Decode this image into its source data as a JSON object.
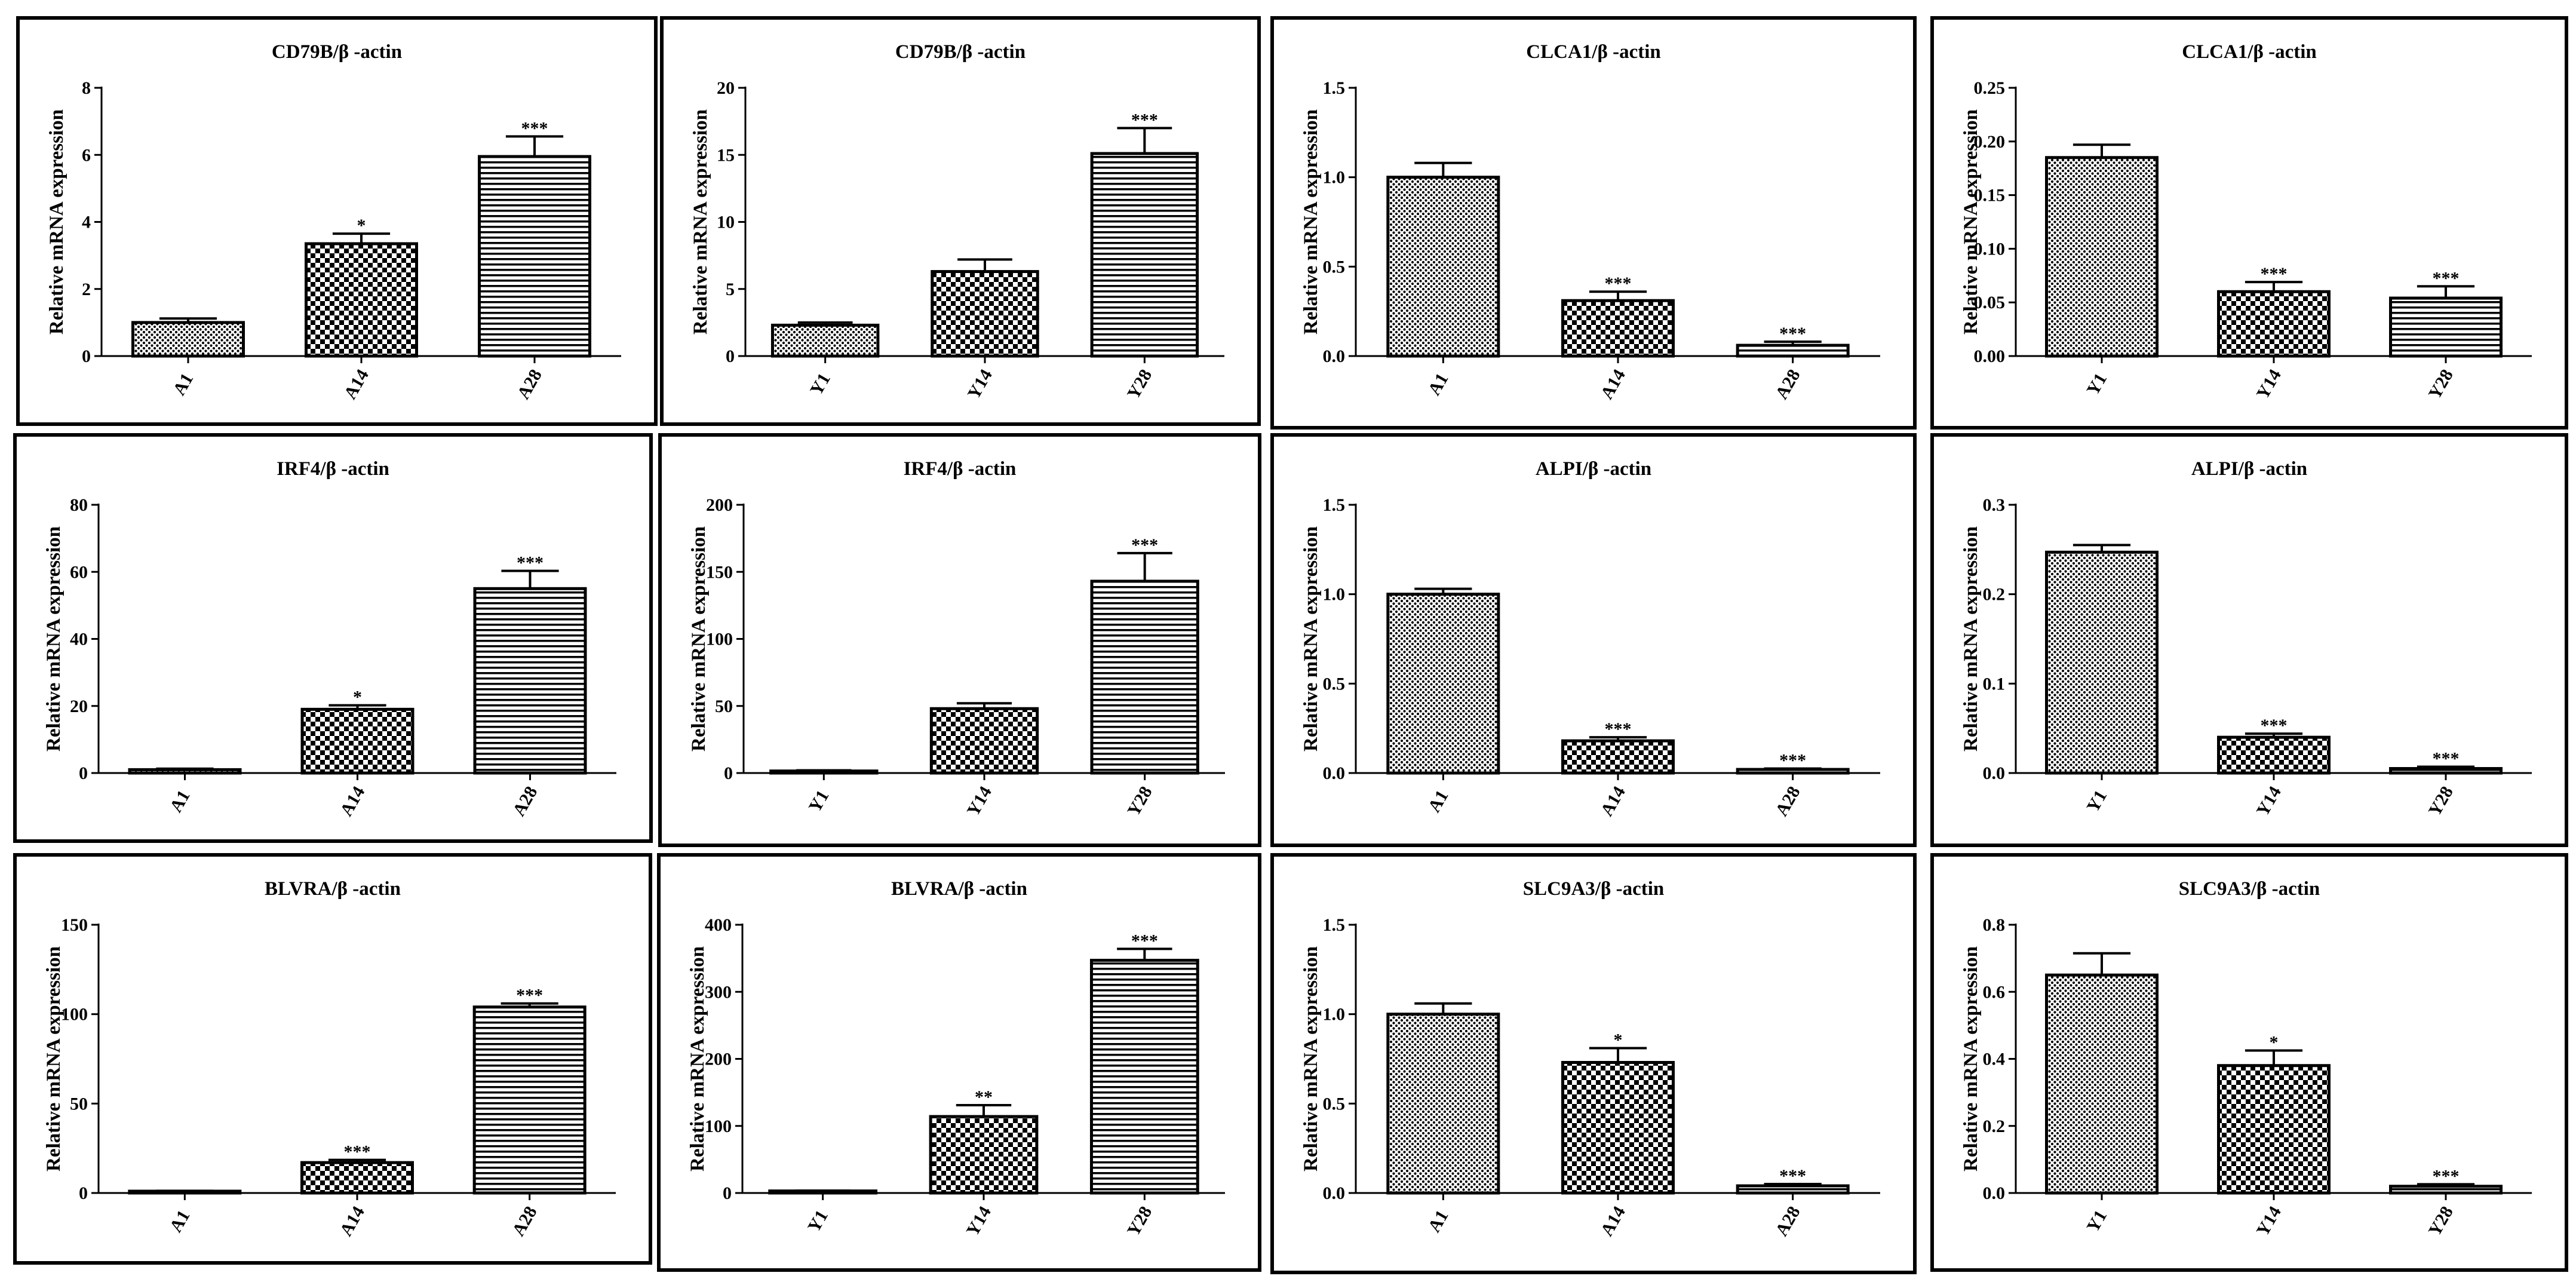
{
  "patterns": {
    "A1": "dots",
    "A14": "checker",
    "A28": "hlines",
    "Y1": "dots",
    "Y14": "checker",
    "Y28": "hlines"
  },
  "chart_data": [
    {
      "type": "bar",
      "title": "CD79B/β -actin",
      "ylabel": "Relative mRNA expression",
      "categories": [
        "A1",
        "A14",
        "A28"
      ],
      "values": [
        1.0,
        3.35,
        5.95
      ],
      "errors": [
        0.12,
        0.3,
        0.6
      ],
      "significance": [
        "",
        "*",
        "***"
      ],
      "ylim": [
        0,
        8
      ],
      "yticks": [
        "0",
        "2",
        "4",
        "6",
        "8"
      ]
    },
    {
      "type": "bar",
      "title": "CD79B/β -actin",
      "ylabel": "Relative mRNA expression",
      "categories": [
        "Y1",
        "Y14",
        "Y28"
      ],
      "values": [
        2.3,
        6.3,
        15.1
      ],
      "errors": [
        0.2,
        0.9,
        1.9
      ],
      "significance": [
        "",
        "",
        "***"
      ],
      "ylim": [
        0,
        20
      ],
      "yticks": [
        "0",
        "5",
        "10",
        "15",
        "20"
      ]
    },
    {
      "type": "bar",
      "title": "CLCA1/β -actin",
      "ylabel": "Relative mRNA expression",
      "categories": [
        "A1",
        "A14",
        "A28"
      ],
      "values": [
        1.0,
        0.31,
        0.06
      ],
      "errors": [
        0.08,
        0.05,
        0.02
      ],
      "significance": [
        "",
        "***",
        "***"
      ],
      "ylim": [
        0,
        1.5
      ],
      "yticks": [
        "0.0",
        "0.5",
        "1.0",
        "1.5"
      ]
    },
    {
      "type": "bar",
      "title": "CLCA1/β -actin",
      "ylabel": "Relative mRNA expression",
      "categories": [
        "Y1",
        "Y14",
        "Y28"
      ],
      "values": [
        0.185,
        0.06,
        0.054
      ],
      "errors": [
        0.012,
        0.009,
        0.011
      ],
      "significance": [
        "",
        "***",
        "***"
      ],
      "ylim": [
        0,
        0.25
      ],
      "yticks": [
        "0.00",
        "0.05",
        "0.10",
        "0.15",
        "0.20",
        "0.25"
      ]
    },
    {
      "type": "bar",
      "title": "IRF4/β -actin",
      "ylabel": "Relative mRNA expression",
      "categories": [
        "A1",
        "A14",
        "A28"
      ],
      "values": [
        1.0,
        19.0,
        55.0
      ],
      "errors": [
        0.3,
        1.2,
        5.3
      ],
      "significance": [
        "",
        "*",
        "***"
      ],
      "ylim": [
        0,
        80
      ],
      "yticks": [
        "0",
        "20",
        "40",
        "60",
        "80"
      ]
    },
    {
      "type": "bar",
      "title": "IRF4/β -actin",
      "ylabel": "Relative mRNA expression",
      "categories": [
        "Y1",
        "Y14",
        "Y28"
      ],
      "values": [
        1.5,
        48.0,
        143.0
      ],
      "errors": [
        0.5,
        4.0,
        21.0
      ],
      "significance": [
        "",
        "",
        "***"
      ],
      "ylim": [
        0,
        200
      ],
      "yticks": [
        "0",
        "50",
        "100",
        "150",
        "200"
      ]
    },
    {
      "type": "bar",
      "title": "ALPI/β -actin",
      "ylabel": "Relative mRNA expression",
      "categories": [
        "A1",
        "A14",
        "A28"
      ],
      "values": [
        1.0,
        0.18,
        0.02
      ],
      "errors": [
        0.03,
        0.02,
        0.005
      ],
      "significance": [
        "",
        "***",
        "***"
      ],
      "ylim": [
        0,
        1.5
      ],
      "yticks": [
        "0.0",
        "0.5",
        "1.0",
        "1.5"
      ]
    },
    {
      "type": "bar",
      "title": "ALPI/β -actin",
      "ylabel": "Relative mRNA expression",
      "categories": [
        "Y1",
        "Y14",
        "Y28"
      ],
      "values": [
        0.247,
        0.04,
        0.005
      ],
      "errors": [
        0.008,
        0.004,
        0.002
      ],
      "significance": [
        "",
        "***",
        "***"
      ],
      "ylim": [
        0,
        0.3
      ],
      "yticks": [
        "0.0",
        "0.1",
        "0.2",
        "0.3"
      ]
    },
    {
      "type": "bar",
      "title": "BLVRA/β -actin",
      "ylabel": "Relative mRNA expression",
      "categories": [
        "A1",
        "A14",
        "A28"
      ],
      "values": [
        1.0,
        17.0,
        104.0
      ],
      "errors": [
        0.2,
        1.5,
        2.0
      ],
      "significance": [
        "",
        "***",
        "***"
      ],
      "ylim": [
        0,
        150
      ],
      "yticks": [
        "0",
        "50",
        "100",
        "150"
      ]
    },
    {
      "type": "bar",
      "title": "BLVRA/β -actin",
      "ylabel": "Relative mRNA expression",
      "categories": [
        "Y1",
        "Y14",
        "Y28"
      ],
      "values": [
        3.0,
        114.0,
        347.0
      ],
      "errors": [
        0.5,
        17.0,
        17.0
      ],
      "significance": [
        "",
        "**",
        "***"
      ],
      "ylim": [
        0,
        400
      ],
      "yticks": [
        "0",
        "100",
        "200",
        "300",
        "400"
      ]
    },
    {
      "type": "bar",
      "title": "SLC9A3/β -actin",
      "ylabel": "Relative mRNA expression",
      "categories": [
        "A1",
        "A14",
        "A28"
      ],
      "values": [
        1.0,
        0.73,
        0.04
      ],
      "errors": [
        0.06,
        0.08,
        0.01
      ],
      "significance": [
        "",
        "*",
        "***"
      ],
      "ylim": [
        0,
        1.5
      ],
      "yticks": [
        "0.0",
        "0.5",
        "1.0",
        "1.5"
      ]
    },
    {
      "type": "bar",
      "title": "SLC9A3/β -actin",
      "ylabel": "Relative mRNA expression",
      "categories": [
        "Y1",
        "Y14",
        "Y28"
      ],
      "values": [
        0.65,
        0.38,
        0.02
      ],
      "errors": [
        0.065,
        0.045,
        0.006
      ],
      "significance": [
        "",
        "*",
        "***"
      ],
      "ylim": [
        0,
        0.8
      ],
      "yticks": [
        "0.0",
        "0.2",
        "0.4",
        "0.6",
        "0.8"
      ]
    }
  ]
}
